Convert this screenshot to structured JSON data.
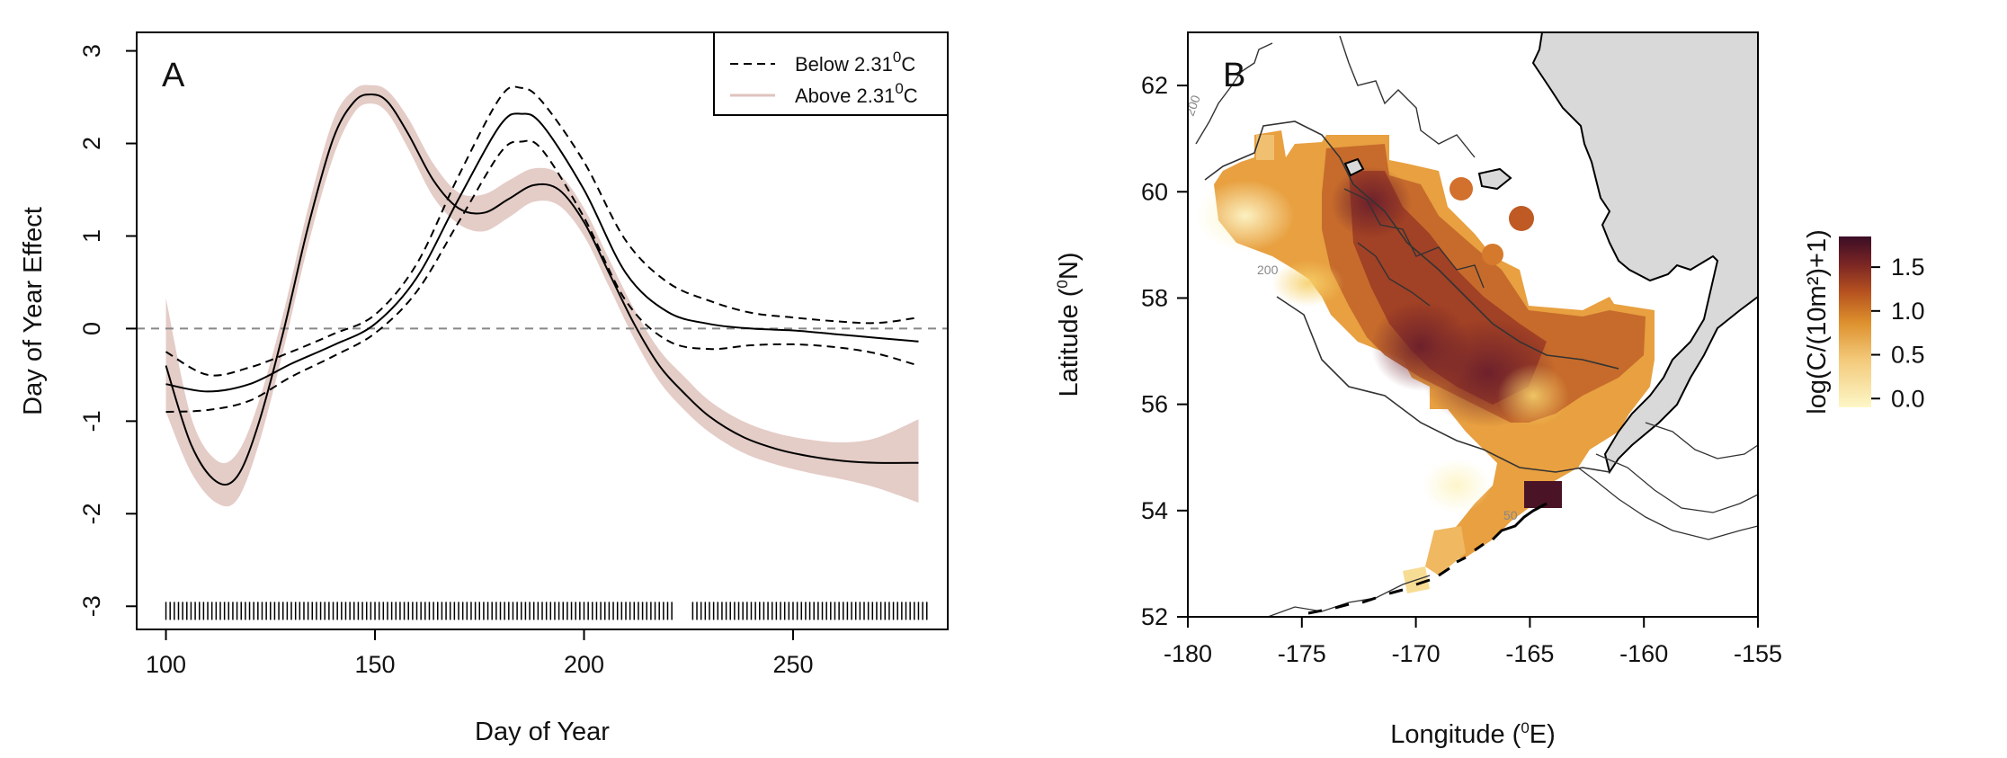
{
  "chart_data": [
    {
      "type": "line",
      "panel_label": "A",
      "xlabel": "Day of Year",
      "ylabel": "Day of Year Effect",
      "xlim": [
        93,
        287
      ],
      "ylim": [
        -3.25,
        3.2
      ],
      "xticks": [
        100,
        150,
        200,
        250
      ],
      "yticks": [
        -3,
        -2,
        -1,
        0,
        1,
        2,
        3
      ],
      "reference_line_y": 0,
      "legend": {
        "placement": "top-right",
        "entries": [
          {
            "prefix": "Below 2.31",
            "sup": "0",
            "suffix": "C",
            "style": "dashed"
          },
          {
            "prefix": "Above 2.31",
            "sup": "0",
            "suffix": "C",
            "style": "shaded"
          }
        ]
      },
      "series": [
        {
          "name": "Below 2.31°C",
          "x": [
            100,
            110,
            120,
            130,
            140,
            150,
            160,
            170,
            180,
            185,
            190,
            200,
            210,
            220,
            230,
            240,
            250,
            260,
            270,
            280
          ],
          "y": [
            -0.6,
            -0.68,
            -0.6,
            -0.38,
            -0.18,
            0.05,
            0.55,
            1.4,
            2.2,
            2.32,
            2.2,
            1.5,
            0.6,
            0.18,
            0.05,
            0.0,
            -0.02,
            -0.06,
            -0.1,
            -0.14
          ],
          "lower": [
            -0.9,
            -0.88,
            -0.78,
            -0.52,
            -0.3,
            -0.05,
            0.4,
            1.15,
            1.9,
            2.02,
            1.93,
            1.2,
            0.3,
            -0.13,
            -0.22,
            -0.18,
            -0.17,
            -0.2,
            -0.27,
            -0.4
          ],
          "upper": [
            -0.25,
            -0.5,
            -0.42,
            -0.25,
            -0.06,
            0.15,
            0.7,
            1.65,
            2.5,
            2.6,
            2.45,
            1.8,
            0.95,
            0.5,
            0.3,
            0.17,
            0.12,
            0.08,
            0.06,
            0.12
          ]
        },
        {
          "name": "Above 2.31°C",
          "color": "#dfc3bd",
          "x": [
            100,
            106,
            112,
            117,
            122,
            128,
            134,
            140,
            145,
            149,
            153,
            158,
            164,
            170,
            176,
            182,
            188,
            194,
            200,
            206,
            212,
            218,
            224,
            230,
            238,
            246,
            254,
            262,
            270,
            280
          ],
          "y": [
            -0.4,
            -1.25,
            -1.65,
            -1.6,
            -1.05,
            -0.05,
            1.1,
            2.05,
            2.45,
            2.53,
            2.45,
            2.1,
            1.6,
            1.3,
            1.25,
            1.4,
            1.55,
            1.5,
            1.15,
            0.6,
            0.05,
            -0.4,
            -0.7,
            -0.95,
            -1.17,
            -1.3,
            -1.38,
            -1.43,
            -1.45,
            -1.45
          ],
          "lower": [
            -0.9,
            -1.55,
            -1.88,
            -1.85,
            -1.28,
            -0.25,
            0.9,
            1.85,
            2.33,
            2.43,
            2.33,
            1.94,
            1.42,
            1.13,
            1.05,
            1.2,
            1.37,
            1.33,
            1.0,
            0.45,
            -0.11,
            -0.57,
            -0.88,
            -1.12,
            -1.34,
            -1.47,
            -1.56,
            -1.63,
            -1.72,
            -1.88
          ],
          "upper": [
            0.33,
            -0.95,
            -1.42,
            -1.35,
            -0.82,
            0.15,
            1.3,
            2.25,
            2.58,
            2.63,
            2.57,
            2.27,
            1.78,
            1.47,
            1.45,
            1.6,
            1.73,
            1.67,
            1.3,
            0.75,
            0.21,
            -0.23,
            -0.52,
            -0.78,
            -1.0,
            -1.13,
            -1.2,
            -1.23,
            -1.18,
            -0.98
          ]
        }
      ],
      "rug": {
        "y": -3.05,
        "x_start": 100,
        "x_end": 282,
        "gap": [
          221,
          226
        ]
      }
    },
    {
      "type": "heatmap",
      "panel_label": "B",
      "xlabel_prefix": "Longitude (",
      "xlabel_sup": "0",
      "xlabel_suffix": "E)",
      "ylabel_prefix": "Latitude (",
      "ylabel_sup": "0",
      "ylabel_suffix": "N)",
      "xlim": [
        -180,
        -155
      ],
      "ylim": [
        52,
        63
      ],
      "xticks": [
        -180,
        -175,
        -170,
        -165,
        -160,
        -155
      ],
      "yticks": [
        52,
        54,
        56,
        58,
        60,
        62
      ],
      "land_color": "#d9d9d9",
      "contour_labels": [
        "200",
        "200",
        "50"
      ],
      "colorbar": {
        "label": "log(C/(10m²)+1)",
        "ticks": [
          0.0,
          0.5,
          1.0,
          1.5
        ],
        "tick_labels": [
          "0.0",
          "0.5",
          "1.0",
          "1.5"
        ],
        "range": [
          -0.1,
          1.85
        ],
        "colors": [
          "#fdf7c7",
          "#f3c97a",
          "#dd8f2c",
          "#b4501f",
          "#7a2525",
          "#3b0d25"
        ]
      },
      "hotspots": [
        {
          "lon": -167.0,
          "lat": 56.5,
          "value": 1.45
        },
        {
          "lon": -169.5,
          "lat": 57.2,
          "value": 1.3
        },
        {
          "lon": -164.5,
          "lat": 54.3,
          "value": 1.7
        },
        {
          "lon": -170.5,
          "lat": 59.0,
          "value": 1.1
        },
        {
          "lon": -172.0,
          "lat": 60.5,
          "value": 1.05
        },
        {
          "lon": -161.0,
          "lat": 57.5,
          "value": 0.95
        }
      ]
    }
  ]
}
